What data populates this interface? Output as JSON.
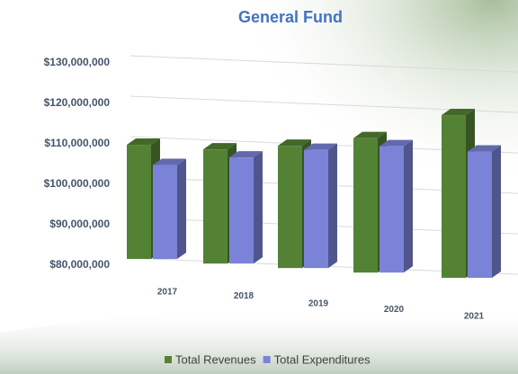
{
  "chart_data": {
    "type": "bar3d",
    "title": "General Fund",
    "categories": [
      "2017",
      "2018",
      "2019",
      "2020",
      "2021"
    ],
    "series": [
      {
        "name": "Total Revenues",
        "color": "#548235",
        "values": [
          110000000,
          110000000,
          112000000,
          115000000,
          122000000
        ]
      },
      {
        "name": "Total Expenditures",
        "color": "#7b83d8",
        "values": [
          105000000,
          108000000,
          111000000,
          113000000,
          113000000
        ]
      }
    ],
    "ylim": [
      80000000,
      130000000
    ],
    "yticks": [
      {
        "value": 80000000,
        "label": "$80,000,000"
      },
      {
        "value": 90000000,
        "label": "$90,000,000"
      },
      {
        "value": 100000000,
        "label": "$100,000,000"
      },
      {
        "value": 110000000,
        "label": "$110,000,000"
      },
      {
        "value": 120000000,
        "label": "$120,000,000"
      },
      {
        "value": 130000000,
        "label": "$130,000,000"
      }
    ],
    "grid": true,
    "legend": "bottom"
  }
}
